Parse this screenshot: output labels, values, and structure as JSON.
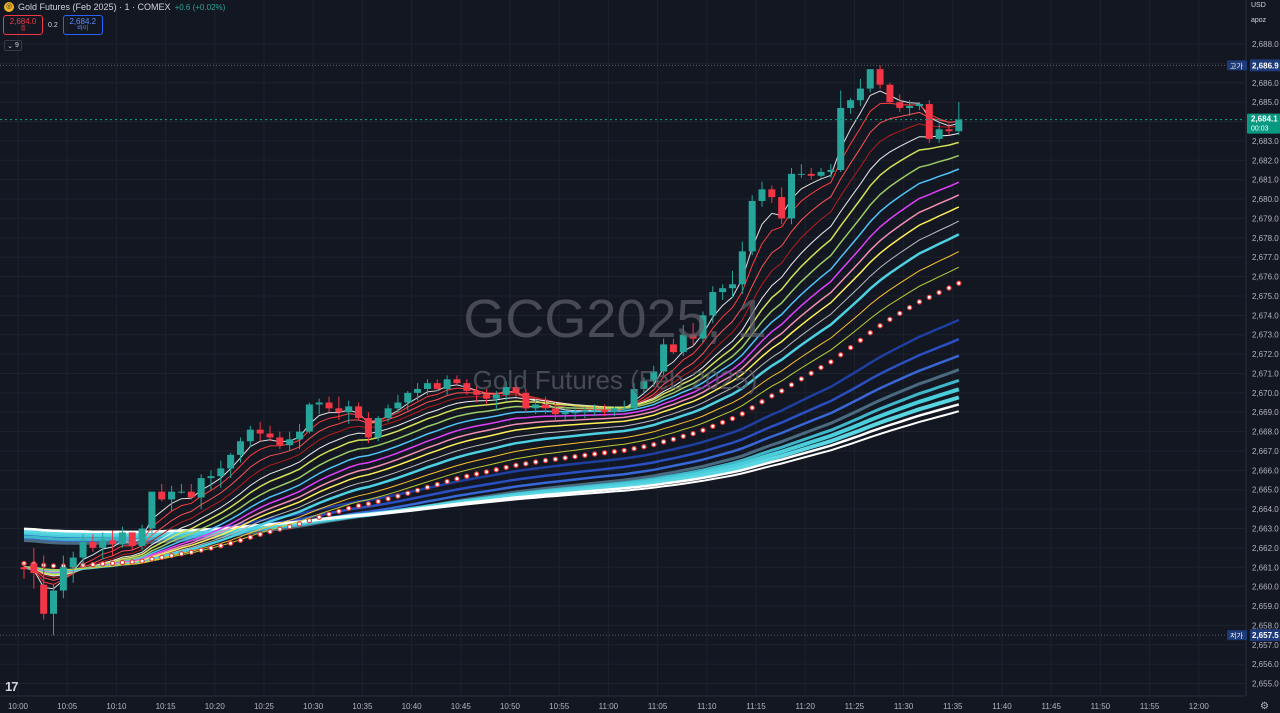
{
  "header": {
    "title": "Gold Futures (Feb 2025) · 1 · COMEX",
    "change": "+0.6 (+0.02%)",
    "logo_icon": "gold-coin-icon"
  },
  "trade": {
    "sell_price": "2,684.0",
    "sell_label": "셀",
    "spread": "0.2",
    "buy_price": "2,684.2",
    "buy_label": "바이"
  },
  "indicators_toggle": {
    "icon": "chevron-down-icon",
    "count": "9"
  },
  "currency": "USD",
  "scale_mode": "apoz",
  "watermark": {
    "title": "GCG2025, 1",
    "subtitle": "Gold Futures (Feb 2025)"
  },
  "colors": {
    "background": "#131722",
    "grid": "#1e222d",
    "up": "#26a69a",
    "down": "#f23645",
    "last_price": "#089981",
    "label_bg": "#1e3a78"
  },
  "chart_data": {
    "type": "candlestick",
    "y_ticks": [
      "2,688.0",
      "2,687.0",
      "2,686.0",
      "2,685.0",
      "2,684.0",
      "2,683.0",
      "2,682.0",
      "2,681.0",
      "2,680.0",
      "2,679.0",
      "2,678.0",
      "2,677.0",
      "2,676.0",
      "2,675.0",
      "2,674.0",
      "2,673.0",
      "2,672.0",
      "2,671.0",
      "2,670.0",
      "2,669.0",
      "2,668.0",
      "2,667.0",
      "2,666.0",
      "2,665.0",
      "2,664.0",
      "2,663.0",
      "2,662.0",
      "2,661.0",
      "2,660.0",
      "2,659.0",
      "2,658.0",
      "2,657.0",
      "2,656.0",
      "2,655.0"
    ],
    "x_ticks": [
      "10:00",
      "10:05",
      "10:10",
      "10:15",
      "10:20",
      "10:25",
      "10:30",
      "10:35",
      "10:40",
      "10:45",
      "10:50",
      "10:55",
      "11:00",
      "11:05",
      "11:10",
      "11:15",
      "11:20",
      "11:25",
      "11:30",
      "11:35",
      "11:40",
      "11:45",
      "11:50",
      "11:55",
      "12:00"
    ],
    "high_label": "고가",
    "high_value": "2,686.9",
    "low_label": "저가",
    "low_value": "2,657.5",
    "last_price": "2,684.1",
    "countdown": "00:03",
    "ylim": [
      2654.4,
      2688.6
    ],
    "candles": [
      [
        2661.0,
        2661.2,
        2660.4,
        2660.9
      ],
      [
        2661.2,
        2662.0,
        2659.9,
        2660.7
      ],
      [
        2660.1,
        2661.6,
        2658.3,
        2658.6
      ],
      [
        2658.6,
        2660.1,
        2657.5,
        2659.8
      ],
      [
        2659.8,
        2661.6,
        2659.4,
        2661.0
      ],
      [
        2661.0,
        2661.8,
        2660.2,
        2661.5
      ],
      [
        2661.5,
        2662.7,
        2661.1,
        2662.3
      ],
      [
        2662.3,
        2662.7,
        2661.8,
        2662.0
      ],
      [
        2662.0,
        2662.8,
        2661.4,
        2662.4
      ],
      [
        2662.4,
        2662.9,
        2661.6,
        2662.2
      ],
      [
        2662.2,
        2663.1,
        2662.0,
        2662.8
      ],
      [
        2662.8,
        2662.7,
        2661.9,
        2662.1
      ],
      [
        2662.1,
        2663.2,
        2661.9,
        2663.0
      ],
      [
        2663.0,
        2664.8,
        2662.7,
        2664.9
      ],
      [
        2664.9,
        2665.3,
        2664.4,
        2664.5
      ],
      [
        2664.5,
        2665.2,
        2663.9,
        2664.9
      ],
      [
        2664.9,
        2665.3,
        2664.8,
        2664.9
      ],
      [
        2664.9,
        2665.3,
        2664.5,
        2664.6
      ],
      [
        2664.6,
        2665.8,
        2664.0,
        2665.6
      ],
      [
        2665.6,
        2666.0,
        2665.0,
        2665.7
      ],
      [
        2665.7,
        2666.5,
        2665.1,
        2666.1
      ],
      [
        2666.1,
        2666.9,
        2665.6,
        2666.8
      ],
      [
        2666.8,
        2667.7,
        2666.4,
        2667.5
      ],
      [
        2667.5,
        2668.3,
        2667.2,
        2668.1
      ],
      [
        2668.1,
        2668.5,
        2667.5,
        2667.9
      ],
      [
        2667.9,
        2668.3,
        2667.5,
        2667.7
      ],
      [
        2667.7,
        2668.0,
        2667.1,
        2667.3
      ],
      [
        2667.3,
        2668.0,
        2667.0,
        2667.6
      ],
      [
        2667.6,
        2668.4,
        2667.1,
        2668.0
      ],
      [
        2668.0,
        2669.5,
        2667.9,
        2669.4
      ],
      [
        2669.4,
        2669.7,
        2668.9,
        2669.5
      ],
      [
        2669.5,
        2669.8,
        2669.0,
        2669.2
      ],
      [
        2669.2,
        2669.8,
        2668.6,
        2669.0
      ],
      [
        2669.0,
        2669.6,
        2668.4,
        2669.3
      ],
      [
        2669.3,
        2669.5,
        2668.6,
        2668.7
      ],
      [
        2668.7,
        2669.0,
        2667.4,
        2667.7
      ],
      [
        2667.7,
        2668.8,
        2667.5,
        2668.7
      ],
      [
        2668.7,
        2669.4,
        2668.5,
        2669.2
      ],
      [
        2669.2,
        2669.9,
        2669.0,
        2669.5
      ],
      [
        2669.5,
        2670.1,
        2669.1,
        2670.0
      ],
      [
        2670.0,
        2670.5,
        2669.6,
        2670.2
      ],
      [
        2670.2,
        2670.7,
        2669.9,
        2670.5
      ],
      [
        2670.5,
        2670.7,
        2670.1,
        2670.2
      ],
      [
        2670.2,
        2670.9,
        2669.9,
        2670.7
      ],
      [
        2670.7,
        2670.9,
        2670.4,
        2670.5
      ],
      [
        2670.5,
        2670.7,
        2669.9,
        2670.1
      ],
      [
        2670.1,
        2670.4,
        2669.5,
        2669.9
      ],
      [
        2669.9,
        2670.2,
        2669.4,
        2669.7
      ],
      [
        2669.7,
        2670.1,
        2669.1,
        2669.9
      ],
      [
        2669.9,
        2670.6,
        2669.6,
        2670.3
      ],
      [
        2670.3,
        2670.6,
        2669.8,
        2670.0
      ],
      [
        2670.0,
        2670.2,
        2669.0,
        2669.2
      ],
      [
        2669.2,
        2669.7,
        2668.9,
        2669.4
      ],
      [
        2669.4,
        2669.8,
        2668.9,
        2669.2
      ],
      [
        2669.2,
        2669.5,
        2668.6,
        2668.9
      ],
      [
        2668.9,
        2669.3,
        2668.6,
        2669.0
      ],
      [
        2669.0,
        2669.3,
        2668.6,
        2669.0
      ],
      [
        2669.0,
        2669.3,
        2668.7,
        2669.1
      ],
      [
        2669.1,
        2669.4,
        2668.8,
        2669.1
      ],
      [
        2669.1,
        2669.4,
        2668.8,
        2669.0
      ],
      [
        2669.0,
        2669.3,
        2668.8,
        2669.2
      ],
      [
        2669.2,
        2669.6,
        2669.0,
        2669.2
      ],
      [
        2669.2,
        2670.5,
        2669.1,
        2670.2
      ],
      [
        2670.2,
        2670.8,
        2669.9,
        2670.6
      ],
      [
        2670.6,
        2671.4,
        2670.3,
        2671.1
      ],
      [
        2671.1,
        2672.8,
        2670.9,
        2672.5
      ],
      [
        2672.5,
        2672.8,
        2672.0,
        2672.1
      ],
      [
        2672.1,
        2673.5,
        2671.9,
        2673.0
      ],
      [
        2673.0,
        2673.6,
        2672.4,
        2672.8
      ],
      [
        2672.8,
        2674.2,
        2672.6,
        2674.0
      ],
      [
        2674.0,
        2675.5,
        2673.6,
        2675.2
      ],
      [
        2675.2,
        2675.6,
        2674.8,
        2675.4
      ],
      [
        2675.4,
        2676.3,
        2674.9,
        2675.6
      ],
      [
        2675.6,
        2677.8,
        2675.1,
        2677.3
      ],
      [
        2677.3,
        2680.2,
        2677.1,
        2679.9
      ],
      [
        2679.9,
        2680.9,
        2679.6,
        2680.5
      ],
      [
        2680.5,
        2680.7,
        2679.8,
        2680.1
      ],
      [
        2680.1,
        2680.6,
        2678.7,
        2679.0
      ],
      [
        2679.0,
        2681.6,
        2678.7,
        2681.3
      ],
      [
        2681.3,
        2681.8,
        2681.1,
        2681.3
      ],
      [
        2681.3,
        2681.6,
        2681.0,
        2681.2
      ],
      [
        2681.2,
        2681.6,
        2681.1,
        2681.4
      ],
      [
        2681.4,
        2681.8,
        2681.1,
        2681.5
      ],
      [
        2681.5,
        2685.6,
        2681.4,
        2684.7
      ],
      [
        2684.7,
        2685.2,
        2684.4,
        2685.1
      ],
      [
        2685.1,
        2686.2,
        2684.8,
        2685.7
      ],
      [
        2685.7,
        2686.7,
        2685.5,
        2686.7
      ],
      [
        2686.7,
        2686.9,
        2685.7,
        2685.9
      ],
      [
        2685.9,
        2686.0,
        2684.9,
        2685.0
      ],
      [
        2685.0,
        2685.4,
        2684.5,
        2684.7
      ],
      [
        2684.7,
        2685.1,
        2684.3,
        2684.8
      ],
      [
        2684.8,
        2685.0,
        2684.6,
        2684.9
      ],
      [
        2684.9,
        2685.1,
        2682.9,
        2683.1
      ],
      [
        2683.1,
        2683.9,
        2682.9,
        2683.6
      ],
      [
        2683.6,
        2683.9,
        2683.3,
        2683.5
      ],
      [
        2683.5,
        2685.0,
        2683.3,
        2684.1
      ]
    ]
  }
}
